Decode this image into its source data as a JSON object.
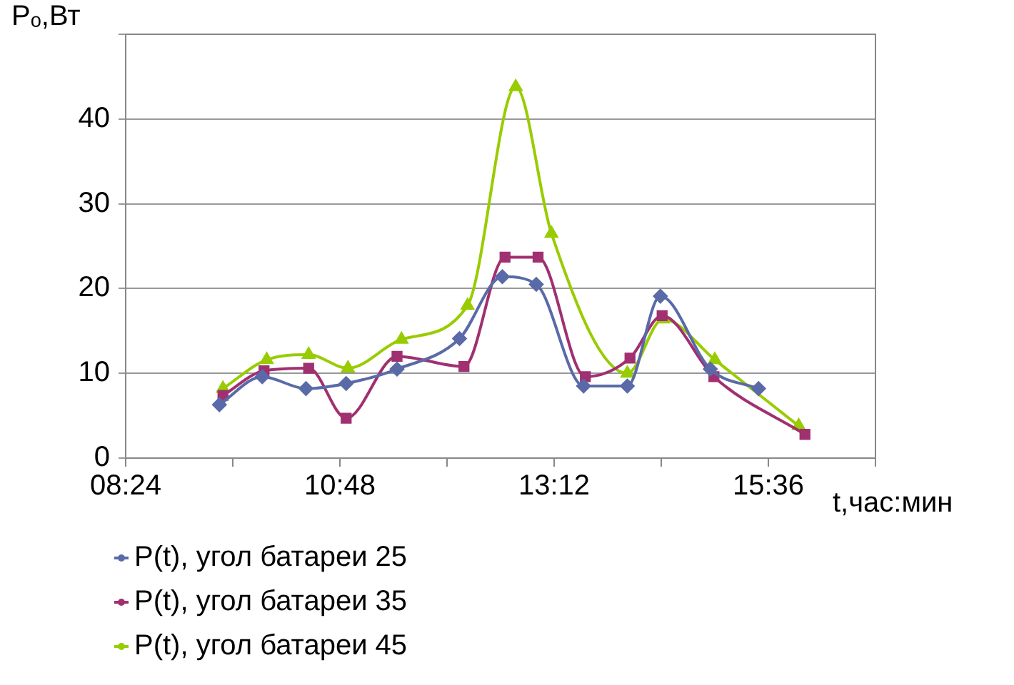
{
  "chart_data": {
    "type": "line",
    "xlabel": "t,час:мин",
    "ylabel": "Pₒ,Вт",
    "xlim": [
      8.4,
      16.8
    ],
    "xticks": [
      {
        "value": 8.4,
        "label": "08:24"
      },
      {
        "value": 9.6,
        "label": null
      },
      {
        "value": 10.8,
        "label": "10:48"
      },
      {
        "value": 12,
        "label": null
      },
      {
        "value": 13.2,
        "label": "13:12"
      },
      {
        "value": 14.4,
        "label": null
      },
      {
        "value": 15.6,
        "label": "15:36"
      },
      {
        "value": 16.8,
        "label": null
      }
    ],
    "ylim": [
      0,
      50
    ],
    "yticks": [
      0,
      10,
      20,
      30,
      40,
      {
        "value": 50,
        "label": null
      }
    ],
    "grid": "y",
    "legend": "bottom left",
    "series": [
      {
        "name": "P(t), угол батареи 25",
        "color": "#5a6aa8",
        "marker": "diamond",
        "x": [
          9.45,
          9.93,
          10.42,
          10.87,
          11.44,
          12.14,
          12.62,
          13.0,
          13.53,
          14.02,
          14.39,
          14.95,
          15.49
        ],
        "values": [
          6.3,
          9.6,
          8.2,
          8.8,
          10.5,
          14.1,
          21.4,
          20.5,
          8.5,
          8.5,
          19.1,
          10.5,
          8.2
        ]
      },
      {
        "name": "P(t), угол батареи 35",
        "color": "#a03070",
        "marker": "square",
        "x": [
          9.49,
          9.95,
          10.45,
          10.87,
          11.44,
          12.19,
          12.65,
          13.02,
          13.55,
          14.05,
          14.41,
          14.99,
          16.01
        ],
        "values": [
          7.4,
          10.3,
          10.6,
          4.7,
          12.0,
          10.8,
          23.7,
          23.7,
          9.6,
          11.8,
          16.8,
          9.6,
          2.8
        ]
      },
      {
        "name": "P(t), угол батареи 45",
        "color": "#99cc00",
        "marker": "triangle",
        "x": [
          9.49,
          9.98,
          10.45,
          10.89,
          11.49,
          12.23,
          12.77,
          13.17,
          14.02,
          14.42,
          15.0,
          15.94
        ],
        "values": [
          8.2,
          11.6,
          12.2,
          10.6,
          14.0,
          18.0,
          43.8,
          26.5,
          10.0,
          16.4,
          11.6,
          3.8
        ]
      }
    ]
  }
}
